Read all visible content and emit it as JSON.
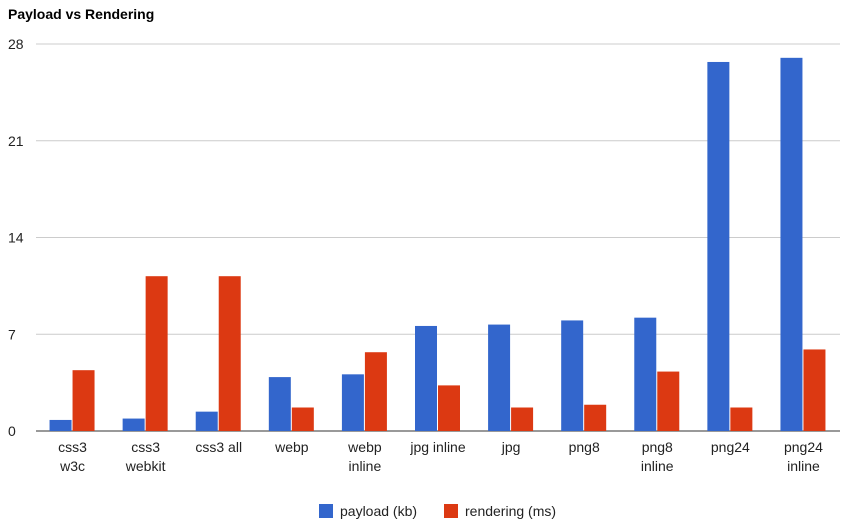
{
  "chart_data": {
    "type": "bar",
    "title": "Payload vs Rendering",
    "xlabel": "",
    "ylabel": "",
    "ylim": [
      0,
      28
    ],
    "yticks": [
      0,
      7,
      14,
      21,
      28
    ],
    "grid": true,
    "legend_position": "bottom",
    "categories": [
      [
        "css3",
        "w3c"
      ],
      [
        "css3",
        "webkit"
      ],
      [
        "css3 all"
      ],
      [
        "webp"
      ],
      [
        "webp",
        "inline"
      ],
      [
        "jpg inline"
      ],
      [
        "jpg"
      ],
      [
        "png8"
      ],
      [
        "png8",
        "inline"
      ],
      [
        "png24"
      ],
      [
        "png24",
        "inline"
      ]
    ],
    "series": [
      {
        "name": "payload (kb)",
        "color": "#3366cc",
        "values": [
          0.8,
          0.9,
          1.4,
          3.9,
          4.1,
          7.6,
          7.7,
          8.0,
          8.2,
          26.7,
          27.0
        ]
      },
      {
        "name": "rendering (ms)",
        "color": "#dc3912",
        "values": [
          4.4,
          11.2,
          11.2,
          1.7,
          5.7,
          3.3,
          1.7,
          1.9,
          4.3,
          1.7,
          5.9
        ]
      }
    ]
  }
}
